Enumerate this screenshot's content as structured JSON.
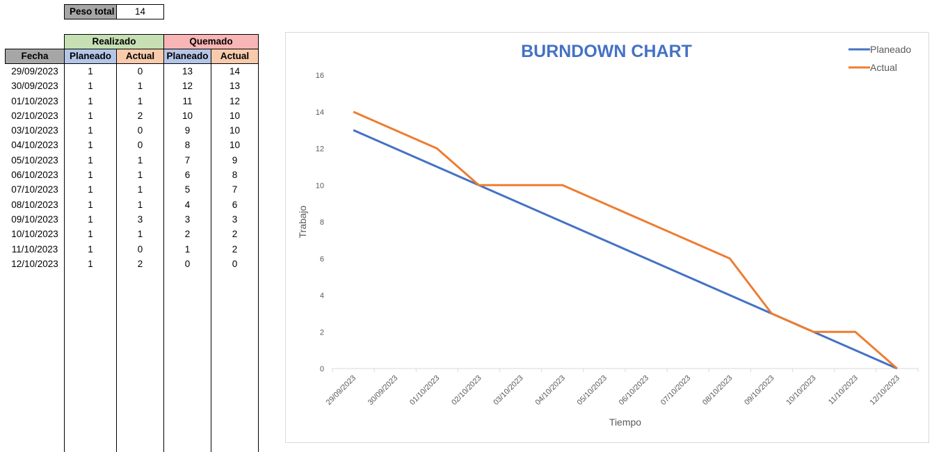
{
  "peso_total": {
    "label": "Peso total",
    "value": "14"
  },
  "table": {
    "groups": {
      "realizado": "Realizado",
      "quemado": "Quemado"
    },
    "headers": {
      "fecha": "Fecha",
      "r_planeado": "Planeado",
      "r_actual": "Actual",
      "q_planeado": "Planeado",
      "q_actual": "Actual"
    },
    "rows": [
      [
        "29/09/2023",
        "1",
        "0",
        "13",
        "14"
      ],
      [
        "30/09/2023",
        "1",
        "1",
        "12",
        "13"
      ],
      [
        "01/10/2023",
        "1",
        "1",
        "11",
        "12"
      ],
      [
        "02/10/2023",
        "1",
        "2",
        "10",
        "10"
      ],
      [
        "03/10/2023",
        "1",
        "0",
        "9",
        "10"
      ],
      [
        "04/10/2023",
        "1",
        "0",
        "8",
        "10"
      ],
      [
        "05/10/2023",
        "1",
        "1",
        "7",
        "9"
      ],
      [
        "06/10/2023",
        "1",
        "1",
        "6",
        "8"
      ],
      [
        "07/10/2023",
        "1",
        "1",
        "5",
        "7"
      ],
      [
        "08/10/2023",
        "1",
        "1",
        "4",
        "6"
      ],
      [
        "09/10/2023",
        "1",
        "3",
        "3",
        "3"
      ],
      [
        "10/10/2023",
        "1",
        "1",
        "2",
        "2"
      ],
      [
        "11/10/2023",
        "1",
        "0",
        "1",
        "2"
      ],
      [
        "12/10/2023",
        "1",
        "2",
        "0",
        "0"
      ]
    ]
  },
  "chart_data": {
    "type": "line",
    "title": "BURNDOWN CHART",
    "xlabel": "Tiempo",
    "ylabel": "Trabajo",
    "ylim": [
      0,
      16
    ],
    "yticks": [
      0,
      2,
      4,
      6,
      8,
      10,
      12,
      14,
      16
    ],
    "categories": [
      "29/09/2023",
      "30/09/2023",
      "01/10/2023",
      "02/10/2023",
      "03/10/2023",
      "04/10/2023",
      "05/10/2023",
      "06/10/2023",
      "07/10/2023",
      "08/10/2023",
      "09/10/2023",
      "10/10/2023",
      "11/10/2023",
      "12/10/2023"
    ],
    "series": [
      {
        "name": "Planeado",
        "color": "#4472c4",
        "values": [
          13,
          12,
          11,
          10,
          9,
          8,
          7,
          6,
          5,
          4,
          3,
          2,
          1,
          0
        ]
      },
      {
        "name": "Actual",
        "color": "#ed7d31",
        "values": [
          14,
          13,
          12,
          10,
          10,
          10,
          9,
          8,
          7,
          6,
          3,
          2,
          2,
          0
        ]
      }
    ],
    "legend": "top-right",
    "grid": false,
    "colors": {
      "title": "#4472c4",
      "axis_text": "#595959",
      "axis_line": "#d9d9d9"
    }
  }
}
